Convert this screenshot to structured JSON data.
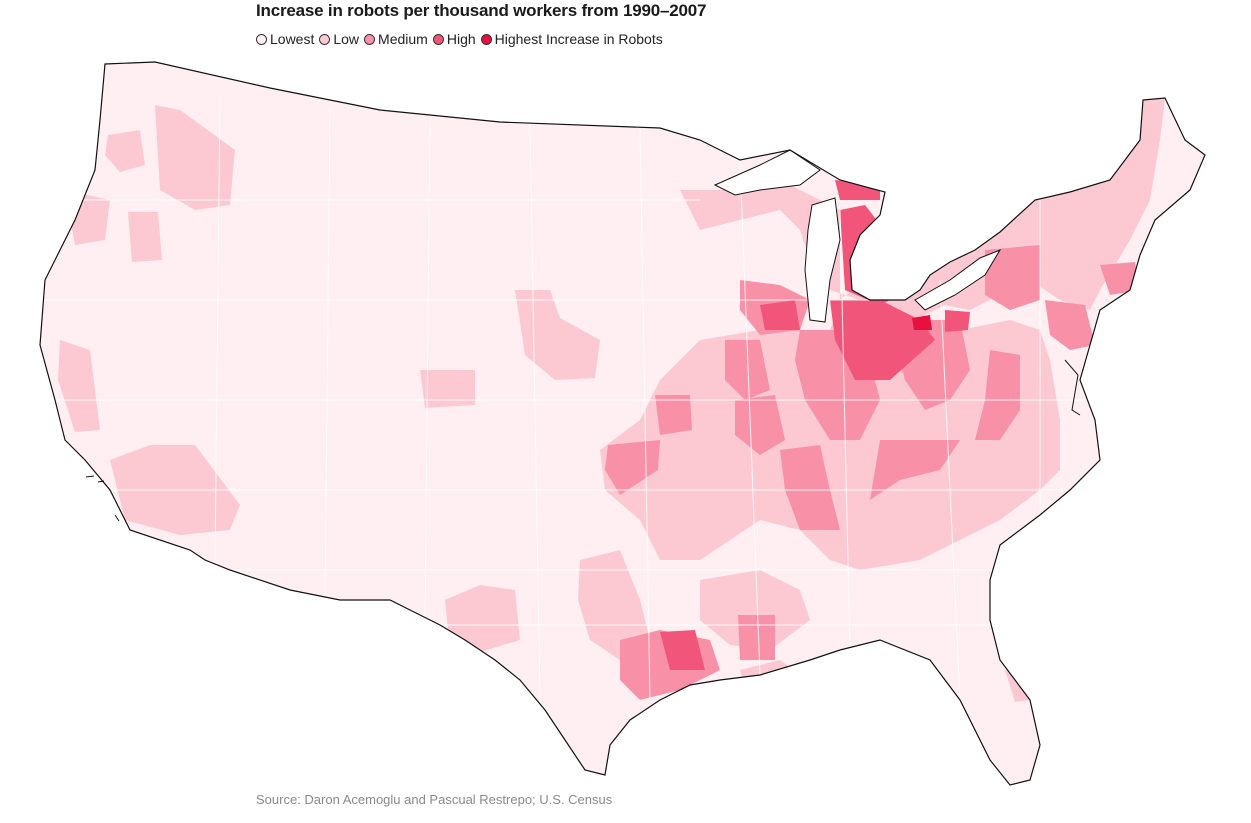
{
  "title": "Increase in robots per thousand workers from 1990–2007",
  "legend": [
    {
      "label": "Lowest",
      "color": "#ffeff2"
    },
    {
      "label": "Low",
      "color": "#fcc9d3"
    },
    {
      "label": "Medium",
      "color": "#f891a8"
    },
    {
      "label": "High",
      "color": "#f2557a"
    },
    {
      "label": "Highest Increase in Robots",
      "color": "#e8103f"
    }
  ],
  "source": "Source: Daron Acemoglu and Pascual Restrepo; U.S. Census"
}
